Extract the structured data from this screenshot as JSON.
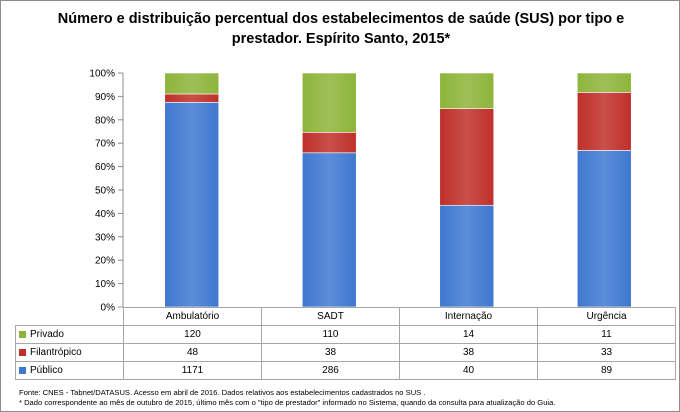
{
  "chart_data": {
    "type": "bar",
    "stacked": "percent",
    "title": "Número e distribuição percentual dos estabelecimentos de saúde (SUS) por tipo e prestador. Espírito Santo, 2015*",
    "categories": [
      "Ambulatório",
      "SADT",
      "Internação",
      "Urgência"
    ],
    "series": [
      {
        "name": "Público",
        "values": [
          1171,
          286,
          40,
          89
        ],
        "color": "#3f78d0"
      },
      {
        "name": "Filantrópico",
        "values": [
          48,
          38,
          38,
          33
        ],
        "color": "#c0302a"
      },
      {
        "name": "Privado",
        "values": [
          120,
          110,
          14,
          11
        ],
        "color": "#8db43a"
      }
    ],
    "table_order": [
      "Privado",
      "Filantrópico",
      "Público"
    ],
    "ylim": [
      0,
      100
    ],
    "yticks": [
      "0%",
      "10%",
      "20%",
      "30%",
      "40%",
      "50%",
      "60%",
      "70%",
      "80%",
      "90%",
      "100%"
    ],
    "grid": false,
    "legend": "data-table-left"
  },
  "footnotes": {
    "source": "Fonte: CNES - Tabnet/DATASUS. Acesso em abril de 2016. Dados relativos aos estabelecimentos cadastrados no SUS .",
    "note": "* Dado correspondente ao mês de outubro de 2015, último mês com o \"tipo de prestador\" informado no Sistema, quando da consulta para atualização do Guia."
  }
}
